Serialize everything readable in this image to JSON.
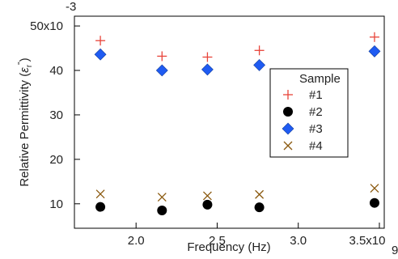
{
  "chart_data": {
    "type": "scatter",
    "xlabel": "Frequency (Hz)",
    "ylabel_main": "Relative Permittivity (",
    "ylabel_symbol": "ε",
    "ylabel_sub": "r",
    "ylabel_sup": "\"",
    "ylabel_close": ")",
    "xlim": [
      1620000000.0,
      3530000000.0
    ],
    "ylim": [
      0.0045,
      0.0522
    ],
    "x_ticks": [
      {
        "value": 2000000000.0,
        "label": "2.0"
      },
      {
        "value": 2500000000.0,
        "label": "2.5"
      },
      {
        "value": 3000000000.0,
        "label": "3.0"
      },
      {
        "value": 3500000000.0,
        "label": "3.5x10"
      }
    ],
    "x_exponent": "9",
    "y_ticks": [
      {
        "value": 0.01,
        "label": "10"
      },
      {
        "value": 0.02,
        "label": "20"
      },
      {
        "value": 0.03,
        "label": "30"
      },
      {
        "value": 0.04,
        "label": "40"
      },
      {
        "value": 0.05,
        "label": "50x10"
      }
    ],
    "y_exponent": "-3",
    "legend_title": "Sample",
    "legend_position": "right",
    "grid": false,
    "series": [
      {
        "name": "#1",
        "marker": "plus",
        "color": "#e8443a",
        "x": [
          1780000000.0,
          2160000000.0,
          2440000000.0,
          2760000000.0,
          3470000000.0
        ],
        "y": [
          0.0467,
          0.0432,
          0.043,
          0.0445,
          0.0475
        ]
      },
      {
        "name": "#2",
        "marker": "circle",
        "color": "#000000",
        "x": [
          1780000000.0,
          2160000000.0,
          2440000000.0,
          2760000000.0,
          3470000000.0
        ],
        "y": [
          0.0093,
          0.0085,
          0.0098,
          0.0092,
          0.0102
        ]
      },
      {
        "name": "#3",
        "marker": "diamond",
        "color": "#1f5bf2",
        "x": [
          1780000000.0,
          2160000000.0,
          2440000000.0,
          2760000000.0,
          3470000000.0
        ],
        "y": [
          0.0436,
          0.04,
          0.0402,
          0.0412,
          0.0443
        ]
      },
      {
        "name": "#4",
        "marker": "x",
        "color": "#8b5a10",
        "x": [
          1780000000.0,
          2160000000.0,
          2440000000.0,
          2760000000.0,
          3470000000.0
        ],
        "y": [
          0.0122,
          0.0115,
          0.0118,
          0.0121,
          0.0135
        ]
      }
    ]
  }
}
